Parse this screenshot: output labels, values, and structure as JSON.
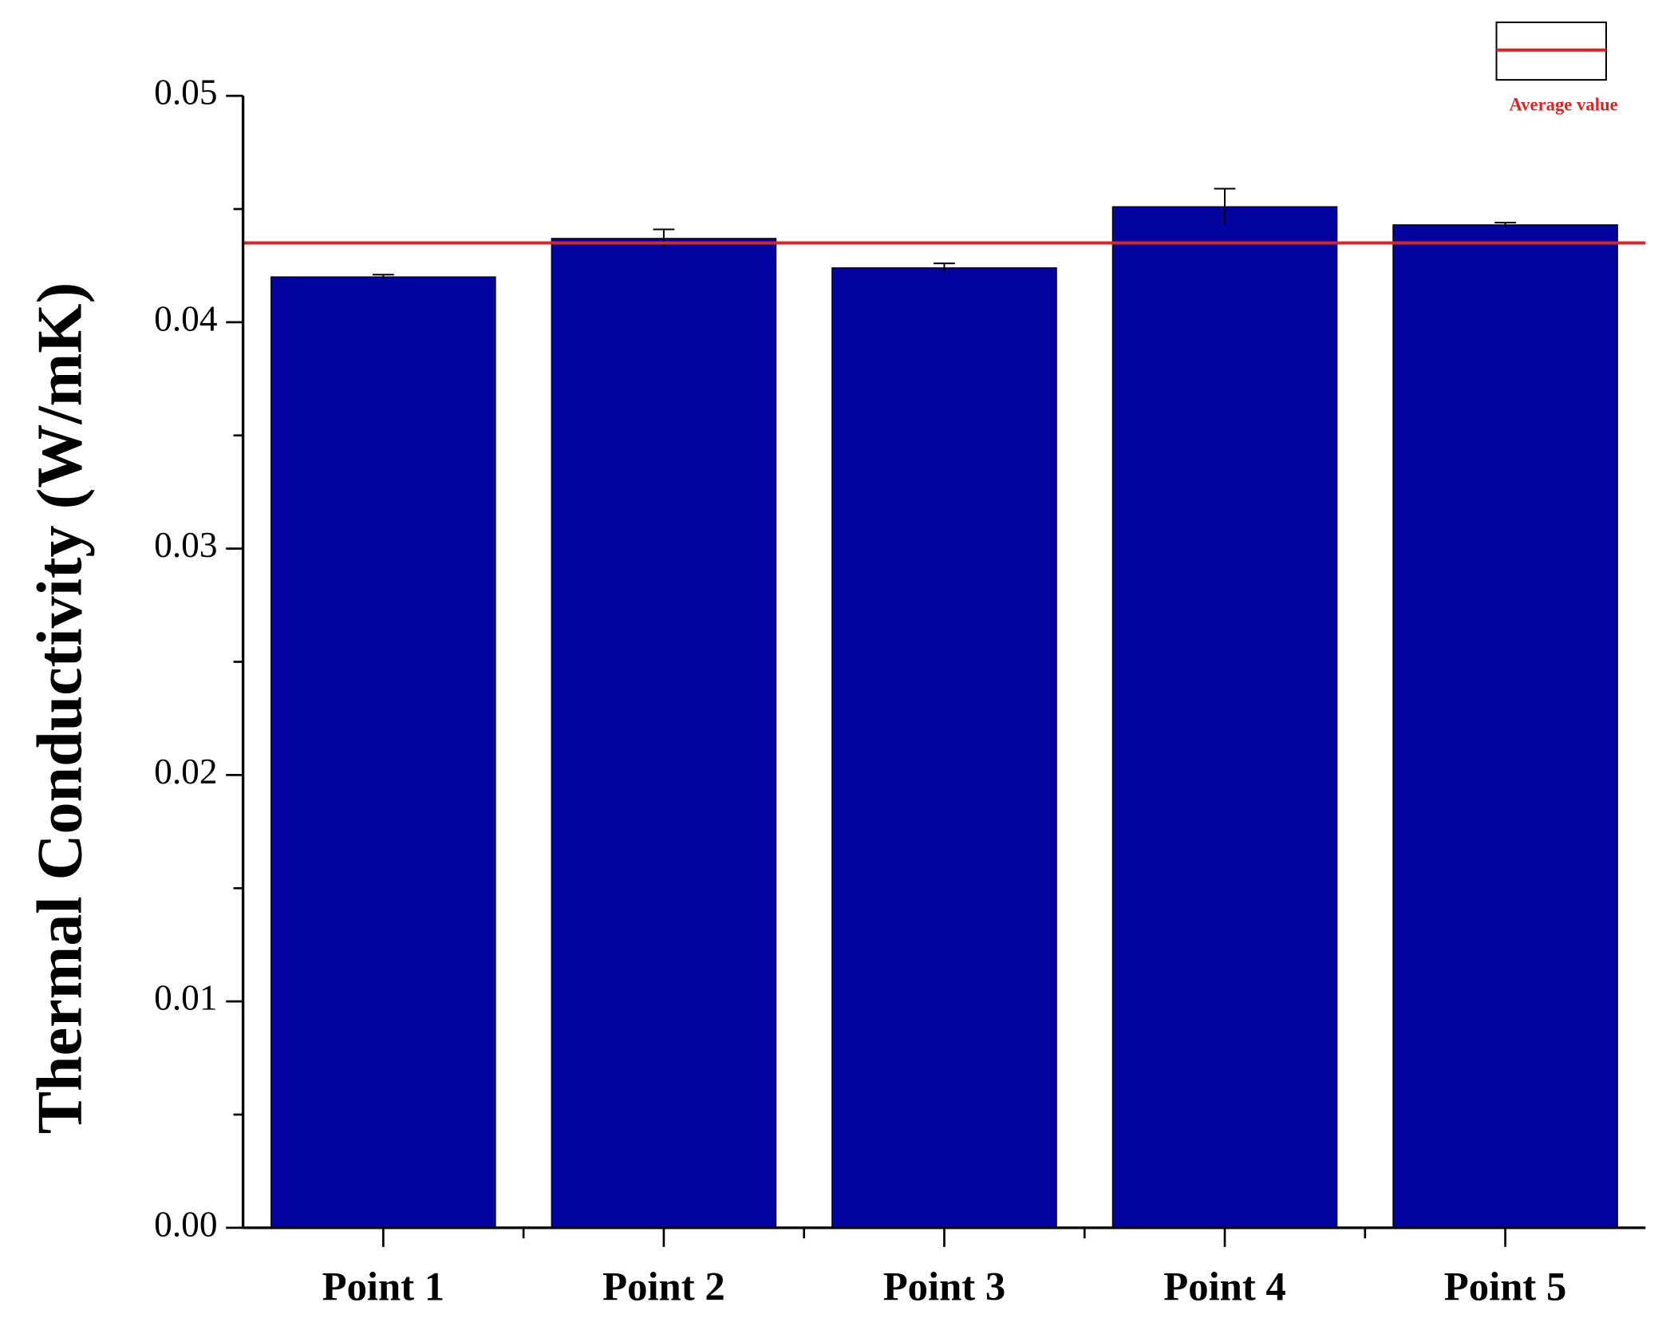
{
  "chart_data": {
    "type": "bar",
    "y_label": "Thermal Conductivity (W/mK)",
    "categories": [
      "Point 1",
      "Point 2",
      "Point 3",
      "Point 4",
      "Point 5"
    ],
    "values": [
      0.042,
      0.0437,
      0.0424,
      0.0451,
      0.0443
    ],
    "errors": [
      0.0001,
      0.0004,
      0.0002,
      0.0008,
      0.0001
    ],
    "color": "#0303a0",
    "reference_line": {
      "name": "Average value",
      "value": 0.0435,
      "color": "#d62728"
    },
    "ylim": [
      0,
      0.05
    ],
    "yticks": [
      {
        "value": 0,
        "label": "0.00"
      },
      0.01,
      0.02,
      0.03,
      0.04,
      0.05
    ],
    "yticks_minor": [
      0.005,
      0.015,
      0.025,
      0.035,
      0.045
    ]
  }
}
